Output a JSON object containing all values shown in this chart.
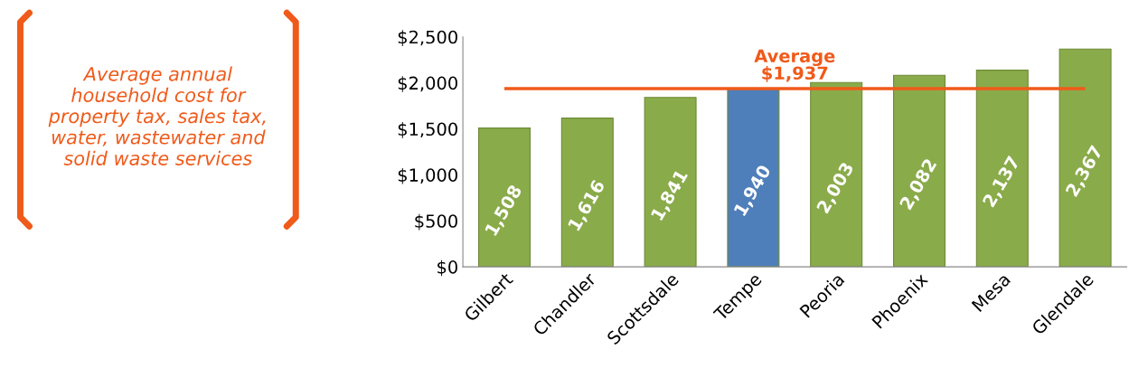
{
  "chart_data": {
    "type": "bar",
    "categories": [
      "Gilbert",
      "Chandler",
      "Scottsdale",
      "Tempe",
      "Peoria",
      "Phoenix",
      "Mesa",
      "Glendale"
    ],
    "values": [
      1508,
      1616,
      1841,
      1940,
      2003,
      2082,
      2137,
      2367
    ],
    "colors": [
      "#8aab4a",
      "#8aab4a",
      "#8aab4a",
      "#4f7fba",
      "#8aab4a",
      "#8aab4a",
      "#8aab4a",
      "#8aab4a"
    ],
    "value_labels": [
      "1,508",
      "1,616",
      "1,841",
      "1,940",
      "2,003",
      "2,082",
      "2,137",
      "2,367"
    ],
    "ylim": [
      0,
      2500
    ],
    "yticks": [
      {
        "value": 0,
        "label": "$0"
      },
      {
        "value": 500,
        "label": "$500"
      },
      {
        "value": 1000,
        "label": "$1,000"
      },
      {
        "value": 1500,
        "label": "$1,500"
      },
      {
        "value": 2000,
        "label": "$2,000"
      },
      {
        "value": 2500,
        "label": "$2,500"
      }
    ],
    "ref_lines": [
      {
        "axis": "y",
        "value": 1937,
        "label": "Average\n$1,937",
        "color": "#f05a1a"
      }
    ],
    "annotations": [
      "Average annual household cost for property tax, sales tax, water, wastewater and solid waste services"
    ],
    "grid": false,
    "legend": false
  }
}
